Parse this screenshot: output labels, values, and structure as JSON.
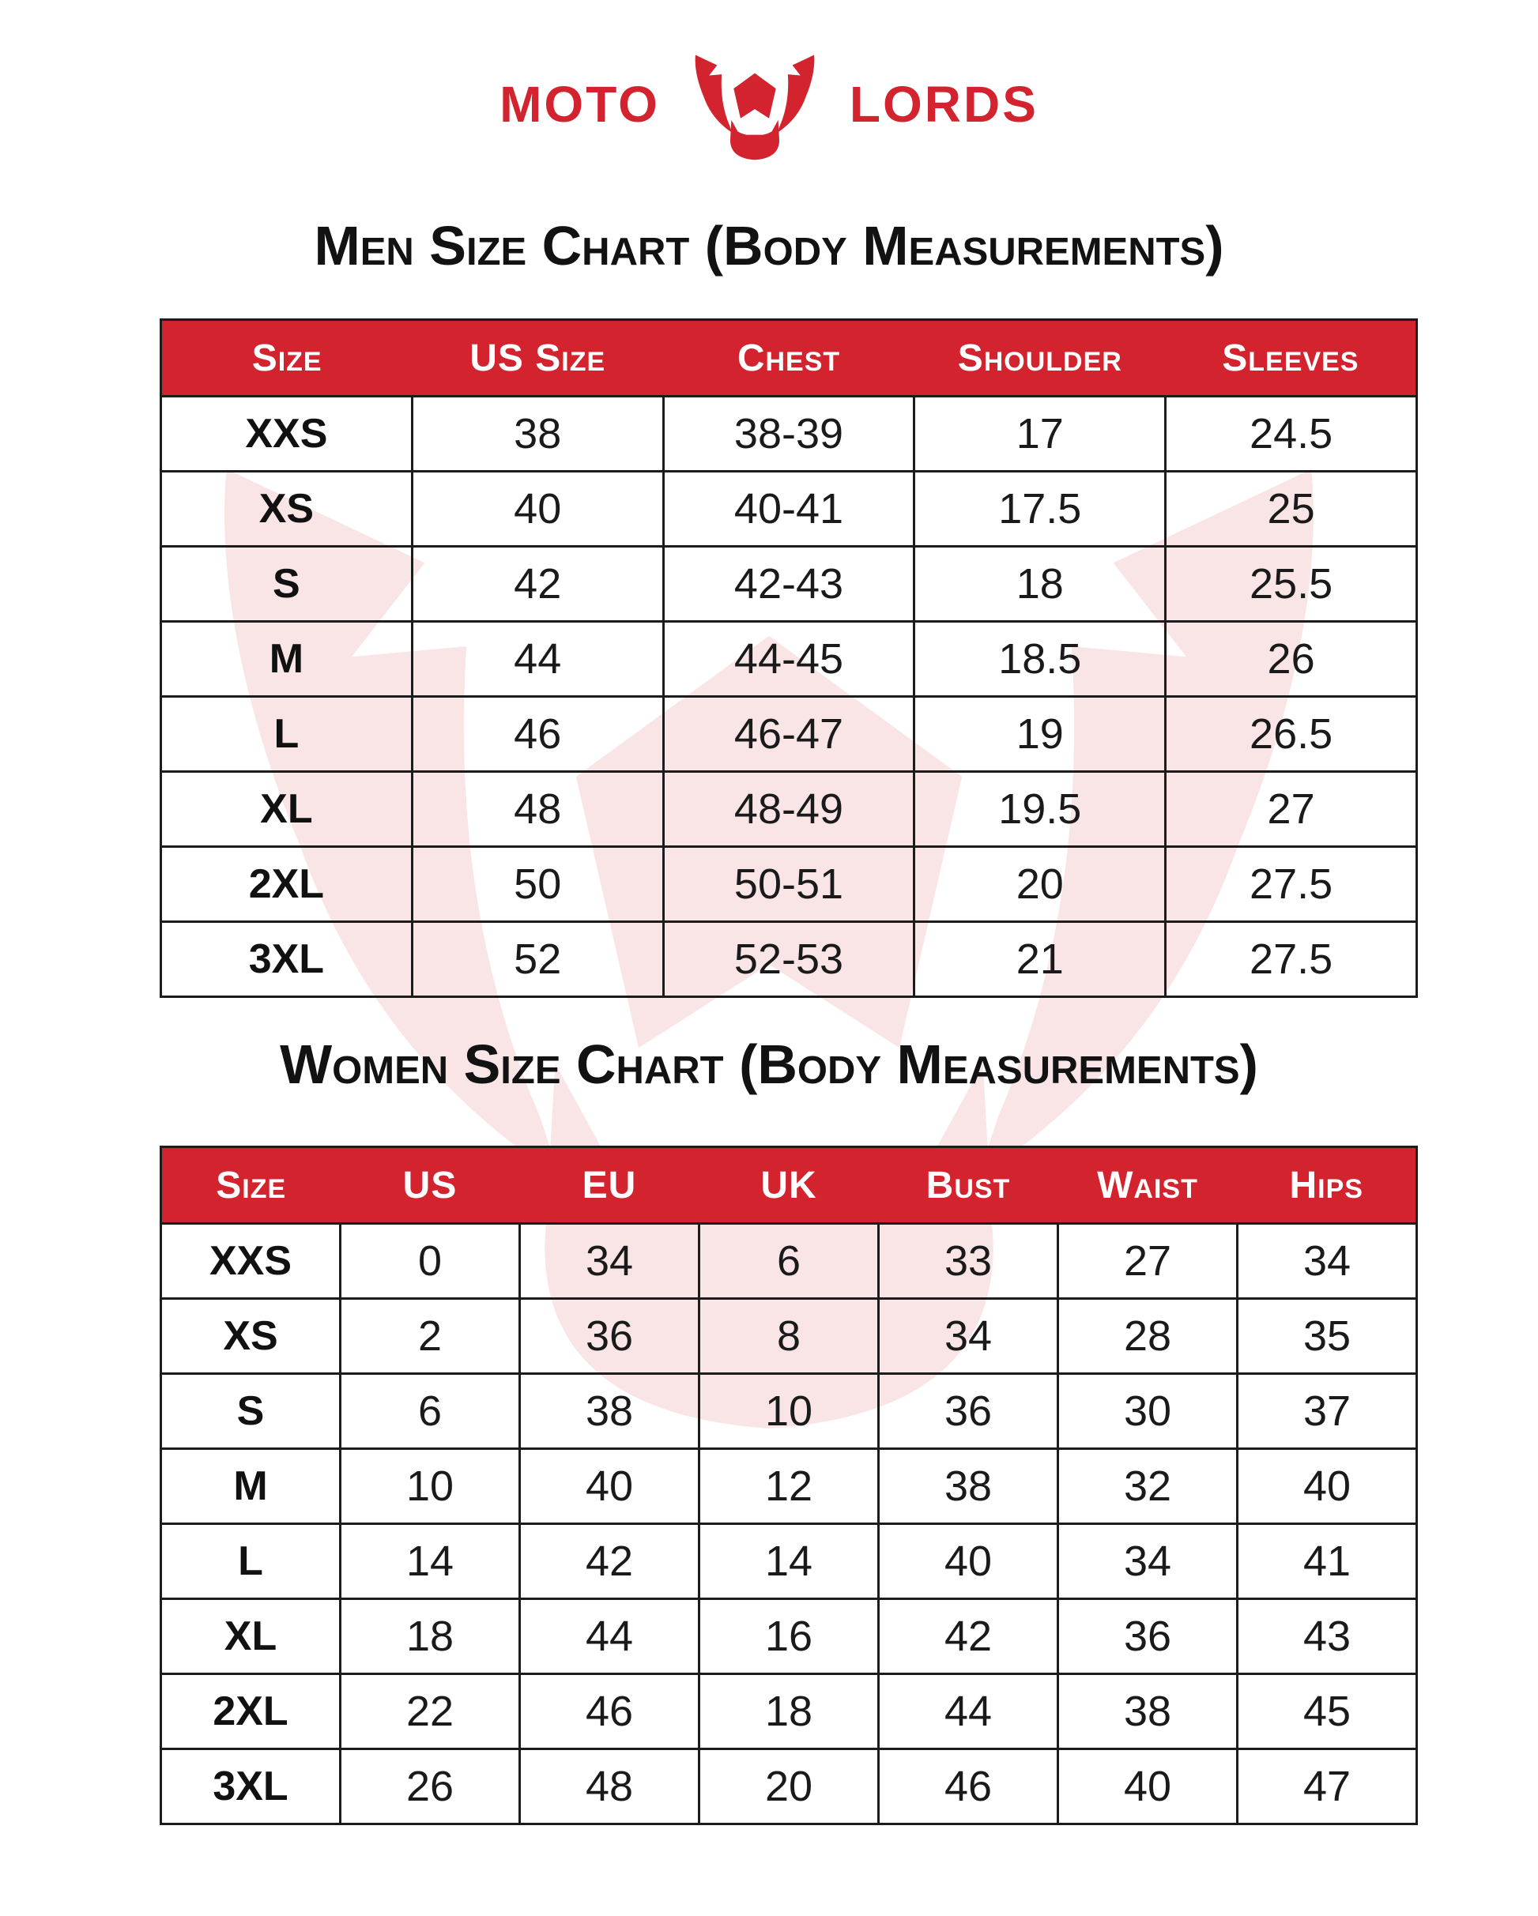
{
  "brand": {
    "word_left": "MOTO",
    "word_right": "LORDS",
    "icon": "bull-head-icon",
    "brand_red": "#D2232E",
    "watermark_pink": "#FAE7E9",
    "grid_ink": "#1C1C1C"
  },
  "men_chart": {
    "title": "Men Size Chart (Body Measurements)",
    "columns": [
      "Size",
      "US Size",
      "Chest",
      "Shoulder",
      "Sleeves"
    ],
    "rows": [
      [
        "XXS",
        "38",
        "38-39",
        "17",
        "24.5"
      ],
      [
        "XS",
        "40",
        "40-41",
        "17.5",
        "25"
      ],
      [
        "S",
        "42",
        "42-43",
        "18",
        "25.5"
      ],
      [
        "M",
        "44",
        "44-45",
        "18.5",
        "26"
      ],
      [
        "L",
        "46",
        "46-47",
        "19",
        "26.5"
      ],
      [
        "XL",
        "48",
        "48-49",
        "19.5",
        "27"
      ],
      [
        "2XL",
        "50",
        "50-51",
        "20",
        "27.5"
      ],
      [
        "3XL",
        "52",
        "52-53",
        "21",
        "27.5"
      ]
    ]
  },
  "women_chart": {
    "title": "Women Size Chart (Body Measurements)",
    "columns": [
      "Size",
      "US",
      "EU",
      "UK",
      "Bust",
      "Waist",
      "Hips"
    ],
    "rows": [
      [
        "XXS",
        "0",
        "34",
        "6",
        "33",
        "27",
        "34"
      ],
      [
        "XS",
        "2",
        "36",
        "8",
        "34",
        "28",
        "35"
      ],
      [
        "S",
        "6",
        "38",
        "10",
        "36",
        "30",
        "37"
      ],
      [
        "M",
        "10",
        "40",
        "12",
        "38",
        "32",
        "40"
      ],
      [
        "L",
        "14",
        "42",
        "14",
        "40",
        "34",
        "41"
      ],
      [
        "XL",
        "18",
        "44",
        "16",
        "42",
        "36",
        "43"
      ],
      [
        "2XL",
        "22",
        "46",
        "18",
        "44",
        "38",
        "45"
      ],
      [
        "3XL",
        "26",
        "48",
        "20",
        "46",
        "40",
        "47"
      ]
    ]
  }
}
